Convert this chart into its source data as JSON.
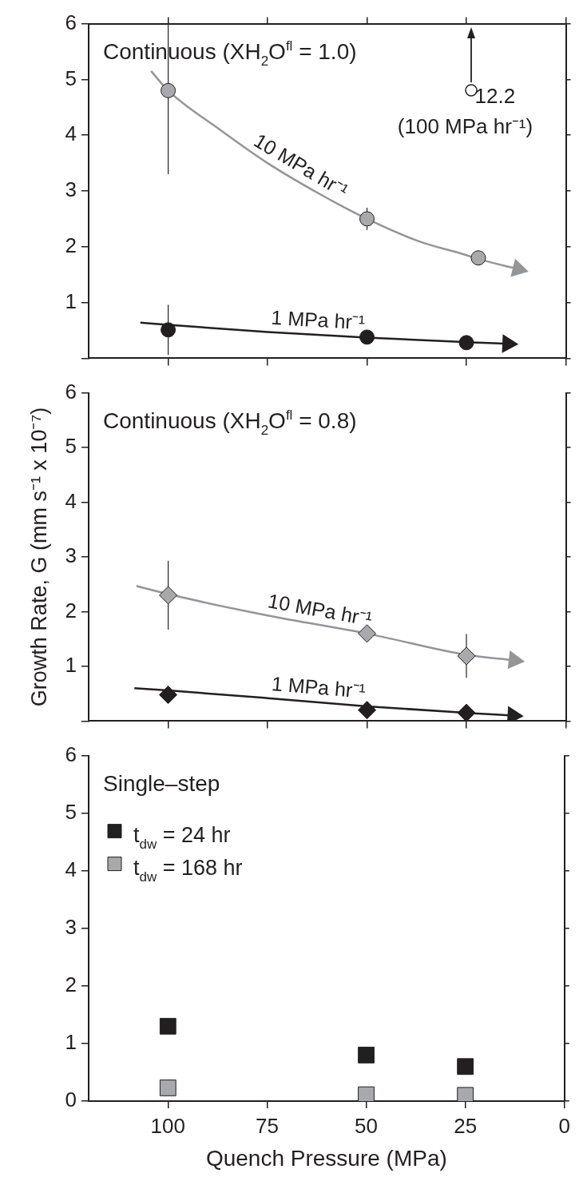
{
  "chart_data": [
    {
      "type": "scatter",
      "title": "Continuous (XH$_{2}$O$^{fl}$ = 1.0)",
      "xlim": [
        120,
        0
      ],
      "xticks": [
        100,
        75,
        50,
        25,
        0
      ],
      "ylim": [
        0,
        6
      ],
      "yticks": [
        {
          "value": 0,
          "label": null
        },
        1,
        2,
        3,
        4,
        5,
        6
      ],
      "tick_labels": "y",
      "grid": false,
      "legend": false,
      "series": [
        {
          "type": "line",
          "name": "10 MPa hr⁻¹",
          "color": "#939598",
          "marker": "none",
          "x": [
            104.3,
            100,
            87,
            75,
            62,
            50,
            37,
            25,
            22,
            12
          ],
          "values": [
            5.15,
            4.8,
            4.1,
            3.5,
            2.95,
            2.5,
            2.1,
            1.85,
            1.78,
            1.6
          ]
        },
        {
          "type": "line",
          "name": "1 MPa hr⁻¹",
          "color": "#231f20",
          "marker": "none",
          "x": [
            107,
            100,
            75,
            50,
            25,
            14.6
          ],
          "values": [
            0.64,
            0.6,
            0.47,
            0.37,
            0.29,
            0.26
          ]
        },
        {
          "color": "#a7a9ac",
          "marker": "circle",
          "x": [
            100,
            50,
            22
          ],
          "values": [
            4.8,
            2.5,
            1.8
          ],
          "errors": [
            [
              3.3,
              6
            ],
            0.2,
            null
          ]
        },
        {
          "color": "#231f20",
          "marker": "circle",
          "x": [
            100,
            50,
            25
          ],
          "values": [
            0.51,
            0.38,
            0.28
          ],
          "errors": [
            0.45,
            null,
            null
          ]
        }
      ],
      "annotations": [
        "12.2\n(100 MPa hr⁻¹)"
      ]
    },
    {
      "type": "scatter",
      "title": "Continuous (XH$_{2}$O$^{fl}$ = 0.8)",
      "ylabel": "Growth Rate, G (mm s⁻¹ x 10⁻⁷)",
      "xlim": [
        120,
        0
      ],
      "xticks": [
        100,
        75,
        50,
        25,
        0
      ],
      "ylim": [
        0,
        6
      ],
      "yticks": [
        {
          "value": 0,
          "label": null
        },
        1,
        2,
        3,
        4,
        5,
        6
      ],
      "tick_labels": "y",
      "grid": false,
      "legend": false,
      "series": [
        {
          "type": "line",
          "name": "10 MPa hr⁻¹",
          "color": "#939598",
          "marker": "none",
          "x": [
            108,
            100,
            75,
            50,
            25,
            13
          ],
          "values": [
            2.47,
            2.32,
            1.93,
            1.6,
            1.21,
            1.11
          ]
        },
        {
          "type": "line",
          "name": "1 MPa hr⁻¹",
          "color": "#231f20",
          "marker": "none",
          "x": [
            108.5,
            100,
            75,
            50,
            25,
            13.3
          ],
          "values": [
            0.6,
            0.56,
            0.42,
            0.27,
            0.15,
            0.1
          ]
        },
        {
          "color": "#a7a9ac",
          "marker": "diamond",
          "x": [
            100,
            50,
            25
          ],
          "values": [
            2.3,
            1.6,
            1.19
          ],
          "errors": [
            0.63,
            null,
            0.4
          ]
        },
        {
          "color": "#231f20",
          "marker": "diamond",
          "x": [
            100,
            50,
            25
          ],
          "values": [
            0.48,
            0.2,
            0.15
          ]
        }
      ]
    },
    {
      "type": "scatter",
      "title": "Single–step",
      "xlabel": "Quench Pressure (MPa)",
      "xlim": [
        120,
        0
      ],
      "xticks": [
        100,
        75,
        50,
        25,
        0
      ],
      "ylim": [
        0,
        6
      ],
      "yticks": [
        0,
        1,
        2,
        3,
        4,
        5,
        6
      ],
      "grid": false,
      "legend": "top left",
      "series": [
        {
          "name": "t$_{dw}$ = 24 hr",
          "color": "#231f20",
          "marker": "square",
          "x": [
            100,
            50,
            25
          ],
          "values": [
            1.3,
            0.8,
            0.6
          ]
        },
        {
          "name": "t$_{dw}$ = 168 hr",
          "color": "#a7a9ac",
          "marker": "square",
          "x": [
            100,
            50,
            25
          ],
          "values": [
            0.23,
            0.11,
            0.1
          ]
        }
      ]
    }
  ]
}
